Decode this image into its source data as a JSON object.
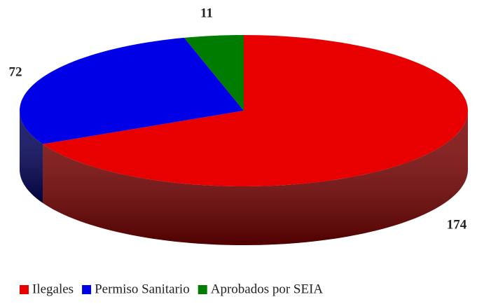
{
  "chart_data": {
    "type": "pie",
    "categories": [
      "Ilegales",
      "Permiso Sanitario",
      "Aprobados por SEIA"
    ],
    "values": [
      174,
      72,
      11
    ],
    "colors": [
      "#e80000",
      "#0000e6",
      "#007c00"
    ],
    "side_colors": [
      "#7a0000",
      "#00005a",
      "#003800"
    ],
    "legend": "bottom"
  }
}
